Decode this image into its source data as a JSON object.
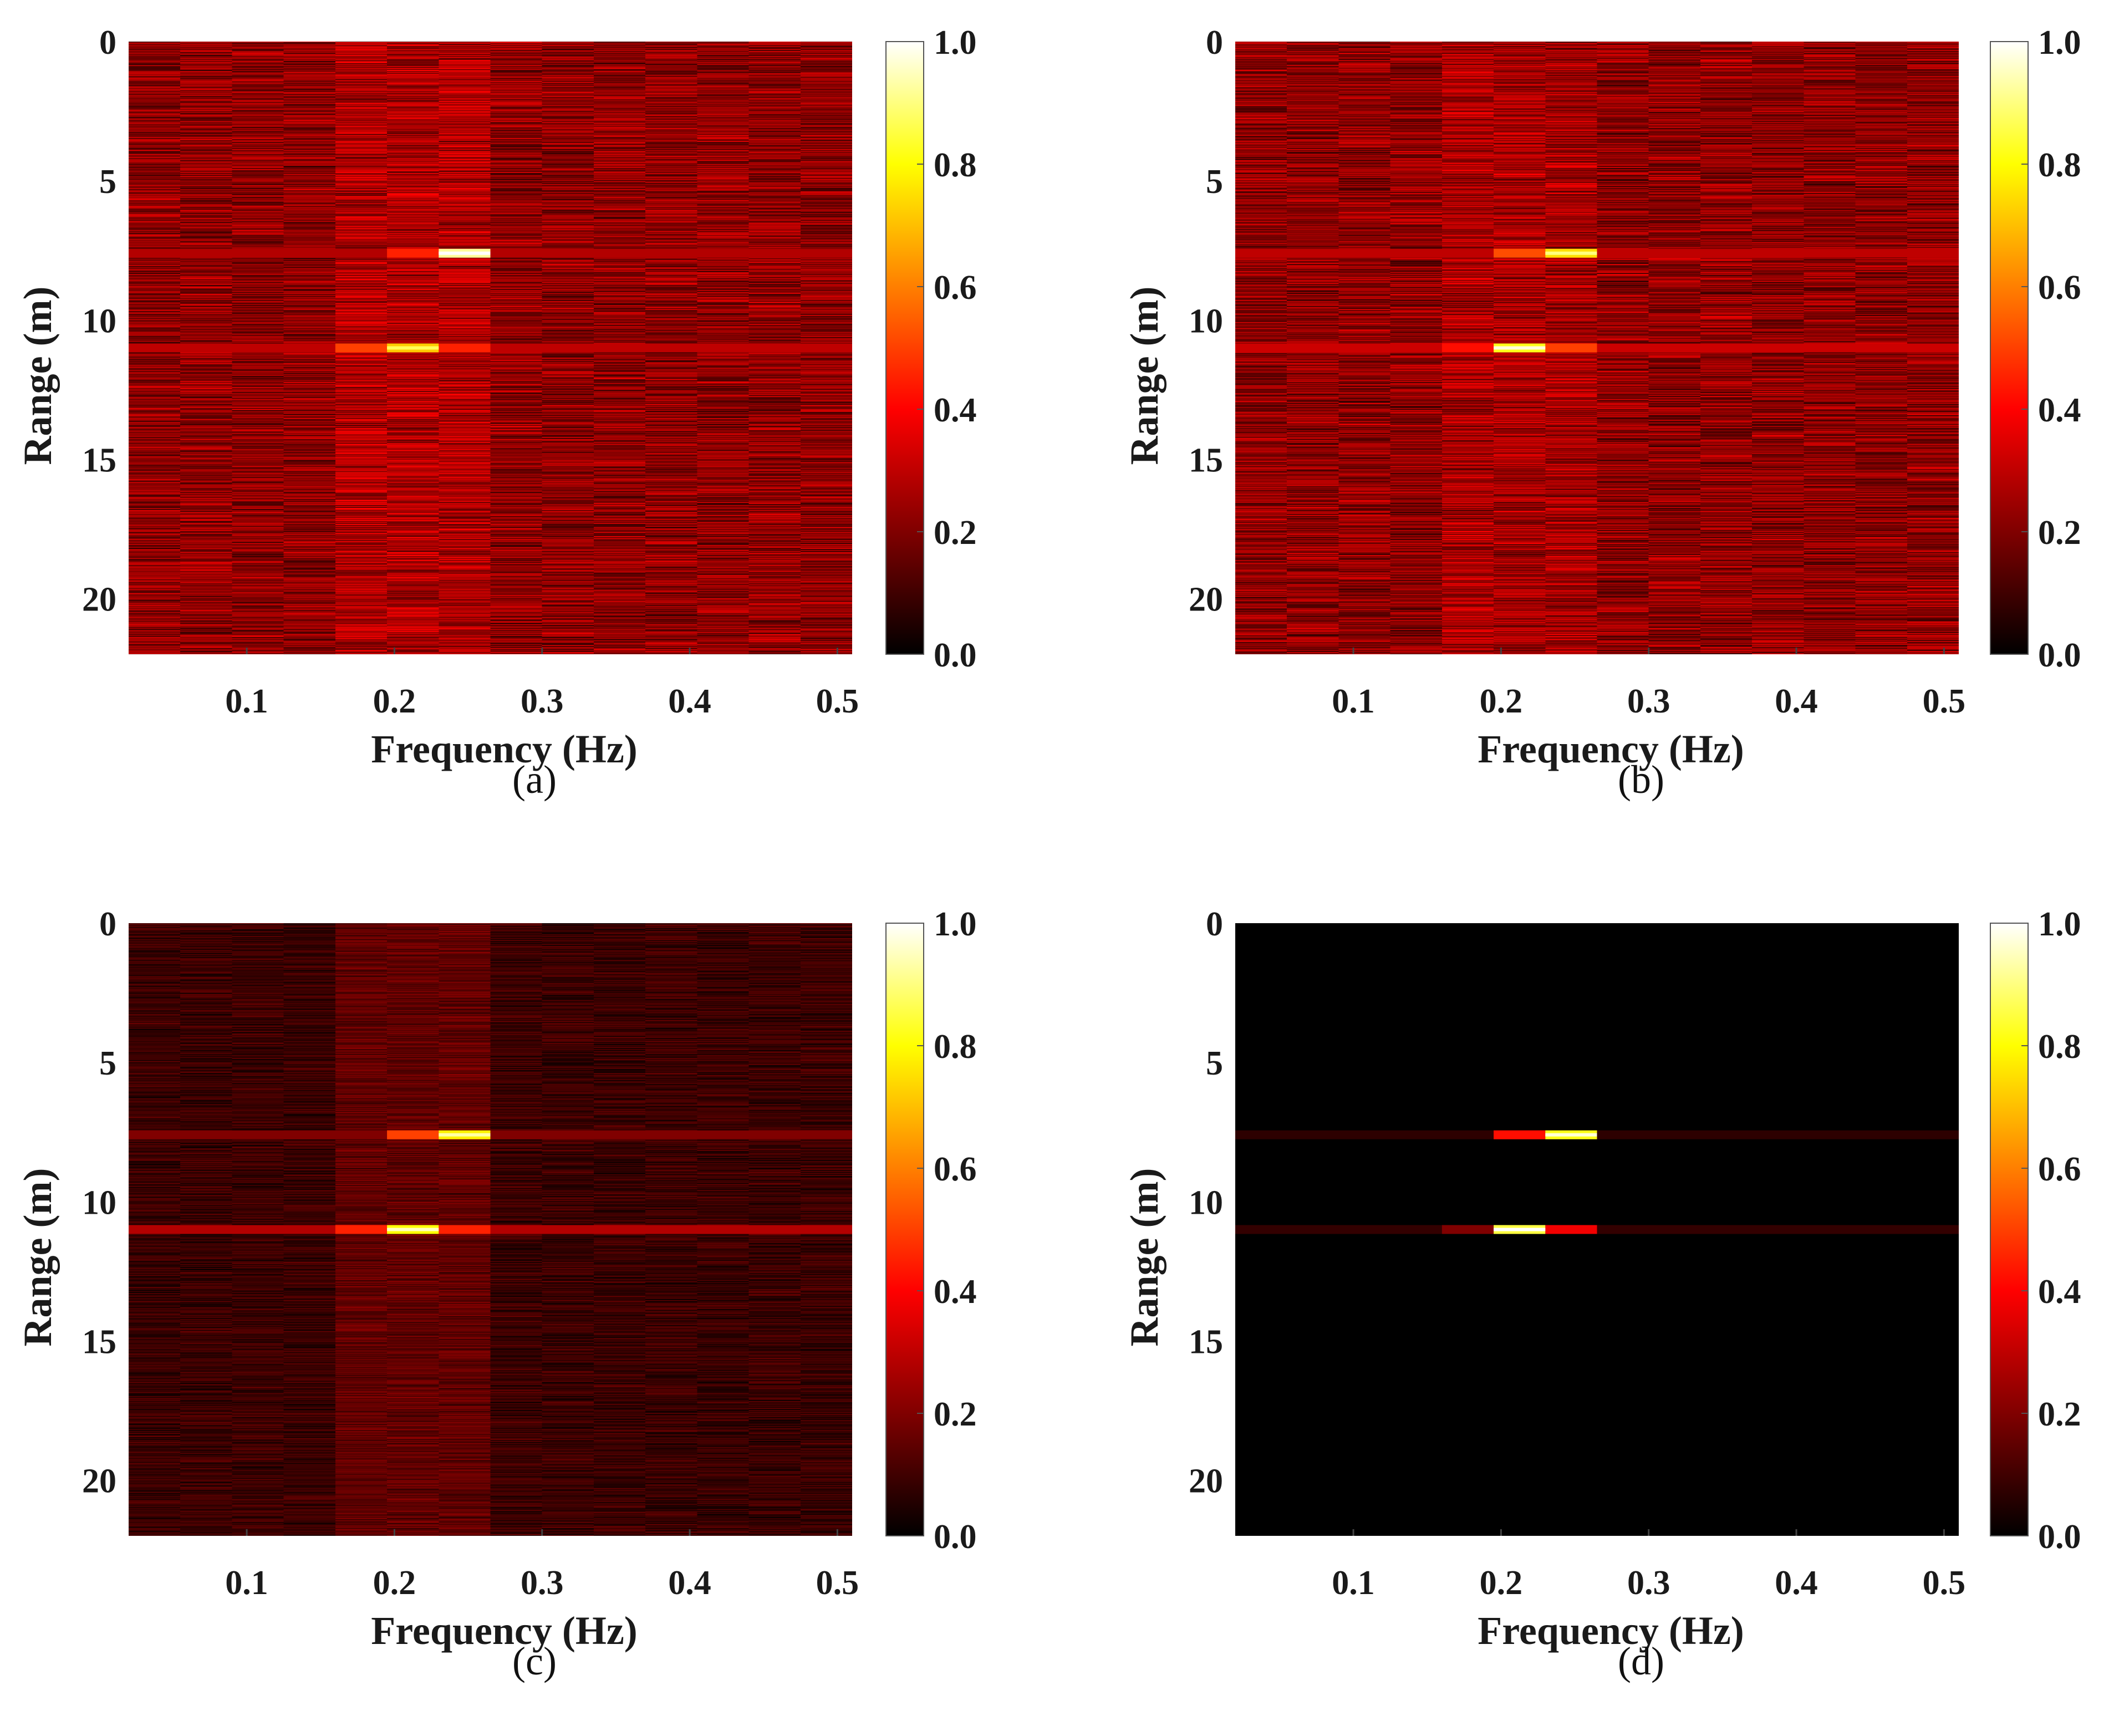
{
  "chart_data": [
    {
      "type": "heatmap",
      "caption": "(a)",
      "xlabel": "Frequency (Hz)",
      "ylabel": "Range (m)",
      "xlim": [
        0.02,
        0.51
      ],
      "ylim": [
        0,
        22
      ],
      "x_ticks": [
        0.1,
        0.2,
        0.3,
        0.4,
        0.5
      ],
      "y_ticks": [
        0,
        5,
        10,
        15,
        20
      ],
      "colorbar": {
        "min": 0.0,
        "max": 1.0,
        "ticks": [
          "0.0",
          "0.2",
          "0.4",
          "0.6",
          "0.8",
          "1.0"
        ]
      },
      "noise_level": 0.22,
      "noise_variation": 0.14,
      "band_boost": 0.05,
      "peaks": [
        {
          "range_m": 7.6,
          "freq_start_hz": 0.23,
          "freq_end_hz": 0.265,
          "value": 0.92
        },
        {
          "range_m": 7.6,
          "freq_start_hz": 0.195,
          "freq_end_hz": 0.23,
          "value": 0.45
        },
        {
          "range_m": 7.6,
          "freq_start_hz": 0.02,
          "freq_end_hz": 0.51,
          "value": 0.28
        },
        {
          "range_m": 11.0,
          "freq_start_hz": 0.195,
          "freq_end_hz": 0.23,
          "value": 0.72
        },
        {
          "range_m": 11.0,
          "freq_start_hz": 0.16,
          "freq_end_hz": 0.195,
          "value": 0.5
        },
        {
          "range_m": 11.0,
          "freq_start_hz": 0.23,
          "freq_end_hz": 0.265,
          "value": 0.45
        },
        {
          "range_m": 11.0,
          "freq_start_hz": 0.02,
          "freq_end_hz": 0.51,
          "value": 0.3
        }
      ]
    },
    {
      "type": "heatmap",
      "caption": "(b)",
      "xlabel": "Frequency (Hz)",
      "ylabel": "Range (m)",
      "xlim": [
        0.02,
        0.51
      ],
      "ylim": [
        0,
        22
      ],
      "x_ticks": [
        0.1,
        0.2,
        0.3,
        0.4,
        0.5
      ],
      "y_ticks": [
        0,
        5,
        10,
        15,
        20
      ],
      "colorbar": {
        "min": 0.0,
        "max": 1.0,
        "ticks": [
          "0.0",
          "0.2",
          "0.4",
          "0.6",
          "0.8",
          "1.0"
        ]
      },
      "noise_level": 0.22,
      "noise_variation": 0.14,
      "band_boost": 0.04,
      "peaks": [
        {
          "range_m": 7.6,
          "freq_start_hz": 0.23,
          "freq_end_hz": 0.265,
          "value": 0.75
        },
        {
          "range_m": 7.6,
          "freq_start_hz": 0.195,
          "freq_end_hz": 0.23,
          "value": 0.52
        },
        {
          "range_m": 7.6,
          "freq_start_hz": 0.02,
          "freq_end_hz": 0.51,
          "value": 0.3
        },
        {
          "range_m": 11.0,
          "freq_start_hz": 0.195,
          "freq_end_hz": 0.23,
          "value": 0.82
        },
        {
          "range_m": 11.0,
          "freq_start_hz": 0.23,
          "freq_end_hz": 0.265,
          "value": 0.5
        },
        {
          "range_m": 11.0,
          "freq_start_hz": 0.16,
          "freq_end_hz": 0.195,
          "value": 0.42
        },
        {
          "range_m": 11.0,
          "freq_start_hz": 0.02,
          "freq_end_hz": 0.51,
          "value": 0.32
        }
      ]
    },
    {
      "type": "heatmap",
      "caption": "(c)",
      "xlabel": "Frequency (Hz)",
      "ylabel": "Range (m)",
      "xlim": [
        0.02,
        0.51
      ],
      "ylim": [
        0,
        22
      ],
      "x_ticks": [
        0.1,
        0.2,
        0.3,
        0.4,
        0.5
      ],
      "y_ticks": [
        0,
        5,
        10,
        15,
        20
      ],
      "colorbar": {
        "min": 0.0,
        "max": 1.0,
        "ticks": [
          "0.0",
          "0.2",
          "0.4",
          "0.6",
          "0.8",
          "1.0"
        ]
      },
      "noise_level": 0.09,
      "noise_variation": 0.07,
      "band_boost": 0.06,
      "peaks": [
        {
          "range_m": 7.6,
          "freq_start_hz": 0.23,
          "freq_end_hz": 0.265,
          "value": 0.78
        },
        {
          "range_m": 7.6,
          "freq_start_hz": 0.195,
          "freq_end_hz": 0.23,
          "value": 0.5
        },
        {
          "range_m": 7.6,
          "freq_start_hz": 0.02,
          "freq_end_hz": 0.51,
          "value": 0.2
        },
        {
          "range_m": 11.0,
          "freq_start_hz": 0.195,
          "freq_end_hz": 0.23,
          "value": 0.8
        },
        {
          "range_m": 11.0,
          "freq_start_hz": 0.16,
          "freq_end_hz": 0.195,
          "value": 0.45
        },
        {
          "range_m": 11.0,
          "freq_start_hz": 0.23,
          "freq_end_hz": 0.265,
          "value": 0.45
        },
        {
          "range_m": 11.0,
          "freq_start_hz": 0.02,
          "freq_end_hz": 0.51,
          "value": 0.28
        }
      ]
    },
    {
      "type": "heatmap",
      "caption": "(d)",
      "xlabel": "Frequency (Hz)",
      "ylabel": "Range (m)",
      "xlim": [
        0.02,
        0.51
      ],
      "ylim": [
        0,
        22
      ],
      "x_ticks": [
        0.1,
        0.2,
        0.3,
        0.4,
        0.5
      ],
      "y_ticks": [
        0,
        5,
        10,
        15,
        20
      ],
      "colorbar": {
        "min": 0.0,
        "max": 1.0,
        "ticks": [
          "0.0",
          "0.2",
          "0.4",
          "0.6",
          "0.8",
          "1.0"
        ]
      },
      "noise_level": 0.0,
      "noise_variation": 0.0,
      "band_boost": 0.0,
      "peaks": [
        {
          "range_m": 7.6,
          "freq_start_hz": 0.23,
          "freq_end_hz": 0.265,
          "value": 0.82
        },
        {
          "range_m": 7.6,
          "freq_start_hz": 0.195,
          "freq_end_hz": 0.23,
          "value": 0.42
        },
        {
          "range_m": 7.6,
          "freq_start_hz": 0.02,
          "freq_end_hz": 0.51,
          "value": 0.07
        },
        {
          "range_m": 11.0,
          "freq_start_hz": 0.195,
          "freq_end_hz": 0.23,
          "value": 0.85
        },
        {
          "range_m": 11.0,
          "freq_start_hz": 0.23,
          "freq_end_hz": 0.265,
          "value": 0.38
        },
        {
          "range_m": 11.0,
          "freq_start_hz": 0.16,
          "freq_end_hz": 0.195,
          "value": 0.2
        },
        {
          "range_m": 11.0,
          "freq_start_hz": 0.02,
          "freq_end_hz": 0.51,
          "value": 0.08
        }
      ]
    }
  ]
}
